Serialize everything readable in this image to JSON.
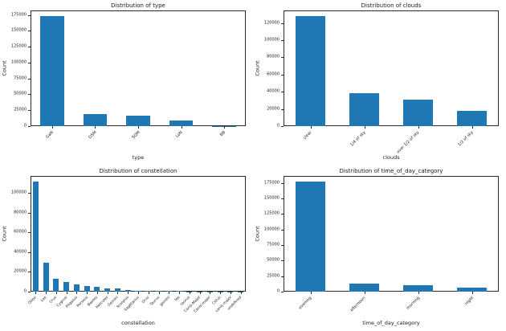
{
  "figure": {
    "background": "#ffffff",
    "bar_color": "#1f77b4",
    "axis_color": "#2b2b2b",
    "text_color": "#1a1a1a"
  },
  "chart_data": [
    {
      "id": "type",
      "type": "bar",
      "title": "Distribution of type",
      "xlabel": "type",
      "ylabel": "Count",
      "categories": [
        "GaN",
        "DSM",
        "SQM",
        "LoN",
        "BB"
      ],
      "values": [
        173000,
        19500,
        16500,
        9000,
        300
      ],
      "yticks": [
        0,
        25000,
        50000,
        75000,
        100000,
        125000,
        150000,
        175000
      ],
      "ylim": [
        0,
        182000
      ],
      "grid": false,
      "legend": "none"
    },
    {
      "id": "clouds",
      "type": "bar",
      "title": "Distribution of clouds",
      "xlabel": "clouds",
      "ylabel": "Count",
      "categories": [
        "clear",
        "1/4 of sky",
        "over 1/2 of sky",
        "1/2 of sky"
      ],
      "values": [
        128000,
        38500,
        30500,
        18000
      ],
      "yticks": [
        0,
        20000,
        40000,
        60000,
        80000,
        100000,
        120000
      ],
      "ylim": [
        0,
        134500
      ],
      "grid": false,
      "legend": "none"
    },
    {
      "id": "constellation",
      "type": "bar",
      "title": "Distribution of constellation",
      "xlabel": "constellation",
      "ylabel": "Count",
      "categories": [
        "Orion",
        "Leo",
        "Crux",
        "Cygnus",
        "Pegasus",
        "Perseus",
        "Bootes",
        "Hercules",
        "Gemini",
        "Scorpius",
        "Sagittarius",
        "Grus",
        "Taurus",
        "gemini",
        "leo",
        "taurus",
        "Canis-Major",
        "Canis-major",
        "Cetus",
        "canis-major",
        "undefined"
      ],
      "values": [
        112000,
        29000,
        13000,
        10000,
        7500,
        5500,
        4500,
        3200,
        2900,
        1300,
        700,
        600,
        550,
        500,
        450,
        400,
        250,
        150,
        100,
        70,
        50
      ],
      "yticks": [
        0,
        20000,
        40000,
        60000,
        80000,
        100000
      ],
      "ylim": [
        0,
        117500
      ],
      "grid": false,
      "legend": "none"
    },
    {
      "id": "time_of_day_category",
      "type": "bar",
      "title": "Distribution of time_of_day_category",
      "xlabel": "time_of_day_category",
      "ylabel": "Count",
      "categories": [
        "evening",
        "afternoon",
        "morning",
        "night"
      ],
      "values": [
        177000,
        13000,
        10000,
        6500
      ],
      "yticks": [
        0,
        25000,
        50000,
        75000,
        100000,
        125000,
        150000,
        175000
      ],
      "ylim": [
        0,
        186000
      ],
      "grid": false,
      "legend": "none"
    }
  ]
}
